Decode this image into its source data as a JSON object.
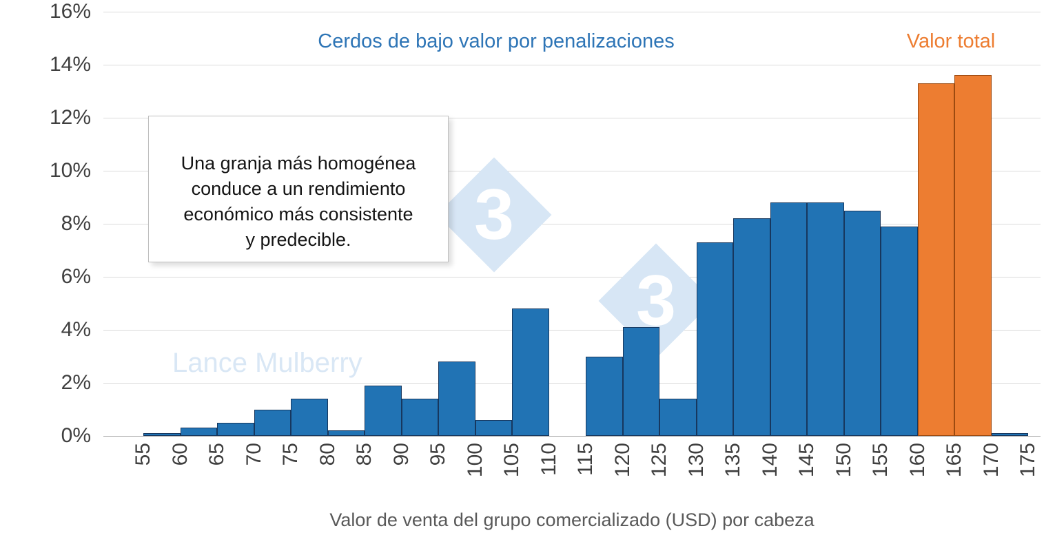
{
  "labels": {
    "series_blue": "Cerdos de bajo valor por penalizaciones",
    "series_orange": "Valor total",
    "x_axis_title": "Valor de venta del grupo comercializado (USD) por cabeza",
    "annotation": "Una granja más homogénea\nconduce a un rendimiento\neconómico más consistente\ny predecible."
  },
  "watermark": {
    "text": "Lance Mulberry",
    "logo_digit": "3"
  },
  "colors": {
    "blue": "#2173B4",
    "blue_border": "#17375E",
    "orange": "#ED7D31",
    "orange_border": "#9C4A10",
    "series_blue_label": "#2E75B6",
    "series_orange_label": "#ED7D31",
    "gridline": "#DADADA",
    "axis_line": "#A3A3A3",
    "tick_text": "#3F3F3F",
    "axis_title_text": "#595959",
    "watermark": "#D9E7F5"
  },
  "chart_data": {
    "type": "bar",
    "subtype": "histogram",
    "title": "",
    "xlabel": "Valor de venta del grupo comercializado (USD) por cabeza",
    "ylabel": "",
    "ylim": [
      0,
      16
    ],
    "grid": "horizontal-light",
    "legend_position": "top-inline-text",
    "y_tick_labels": [
      "0%",
      "2%",
      "4%",
      "6%",
      "8%",
      "10%",
      "12%",
      "14%",
      "16%"
    ],
    "x_tick_labels": [
      "55",
      "60",
      "65",
      "70",
      "75",
      "80",
      "85",
      "90",
      "95",
      "100",
      "105",
      "110",
      "115",
      "120",
      "125",
      "130",
      "135",
      "140",
      "145",
      "150",
      "155",
      "160",
      "165",
      "170",
      "175"
    ],
    "bin_edges": [
      55,
      60,
      65,
      70,
      75,
      80,
      85,
      90,
      95,
      100,
      105,
      110,
      115,
      120,
      125,
      130,
      135,
      140,
      145,
      150,
      155,
      160,
      165,
      170,
      175
    ],
    "values": [
      0.1,
      0.3,
      0.5,
      1.0,
      1.4,
      0.2,
      1.9,
      1.4,
      2.8,
      0.6,
      4.8,
      0,
      3.0,
      4.1,
      1.4,
      7.3,
      8.2,
      8.8,
      8.8,
      8.5,
      7.9,
      13.3,
      13.6,
      0.1
    ],
    "bar_series": [
      "blue",
      "blue",
      "blue",
      "blue",
      "blue",
      "blue",
      "blue",
      "blue",
      "blue",
      "blue",
      "blue",
      "blue",
      "blue",
      "blue",
      "blue",
      "blue",
      "blue",
      "blue",
      "blue",
      "blue",
      "blue",
      "orange",
      "orange",
      "blue"
    ],
    "series": [
      {
        "name": "Cerdos de bajo valor por penalizaciones",
        "color": "#2173B4"
      },
      {
        "name": "Valor total",
        "color": "#ED7D31"
      }
    ],
    "annotation": "Una granja más homogénea conduce a un rendimiento económico más consistente y predecible."
  }
}
